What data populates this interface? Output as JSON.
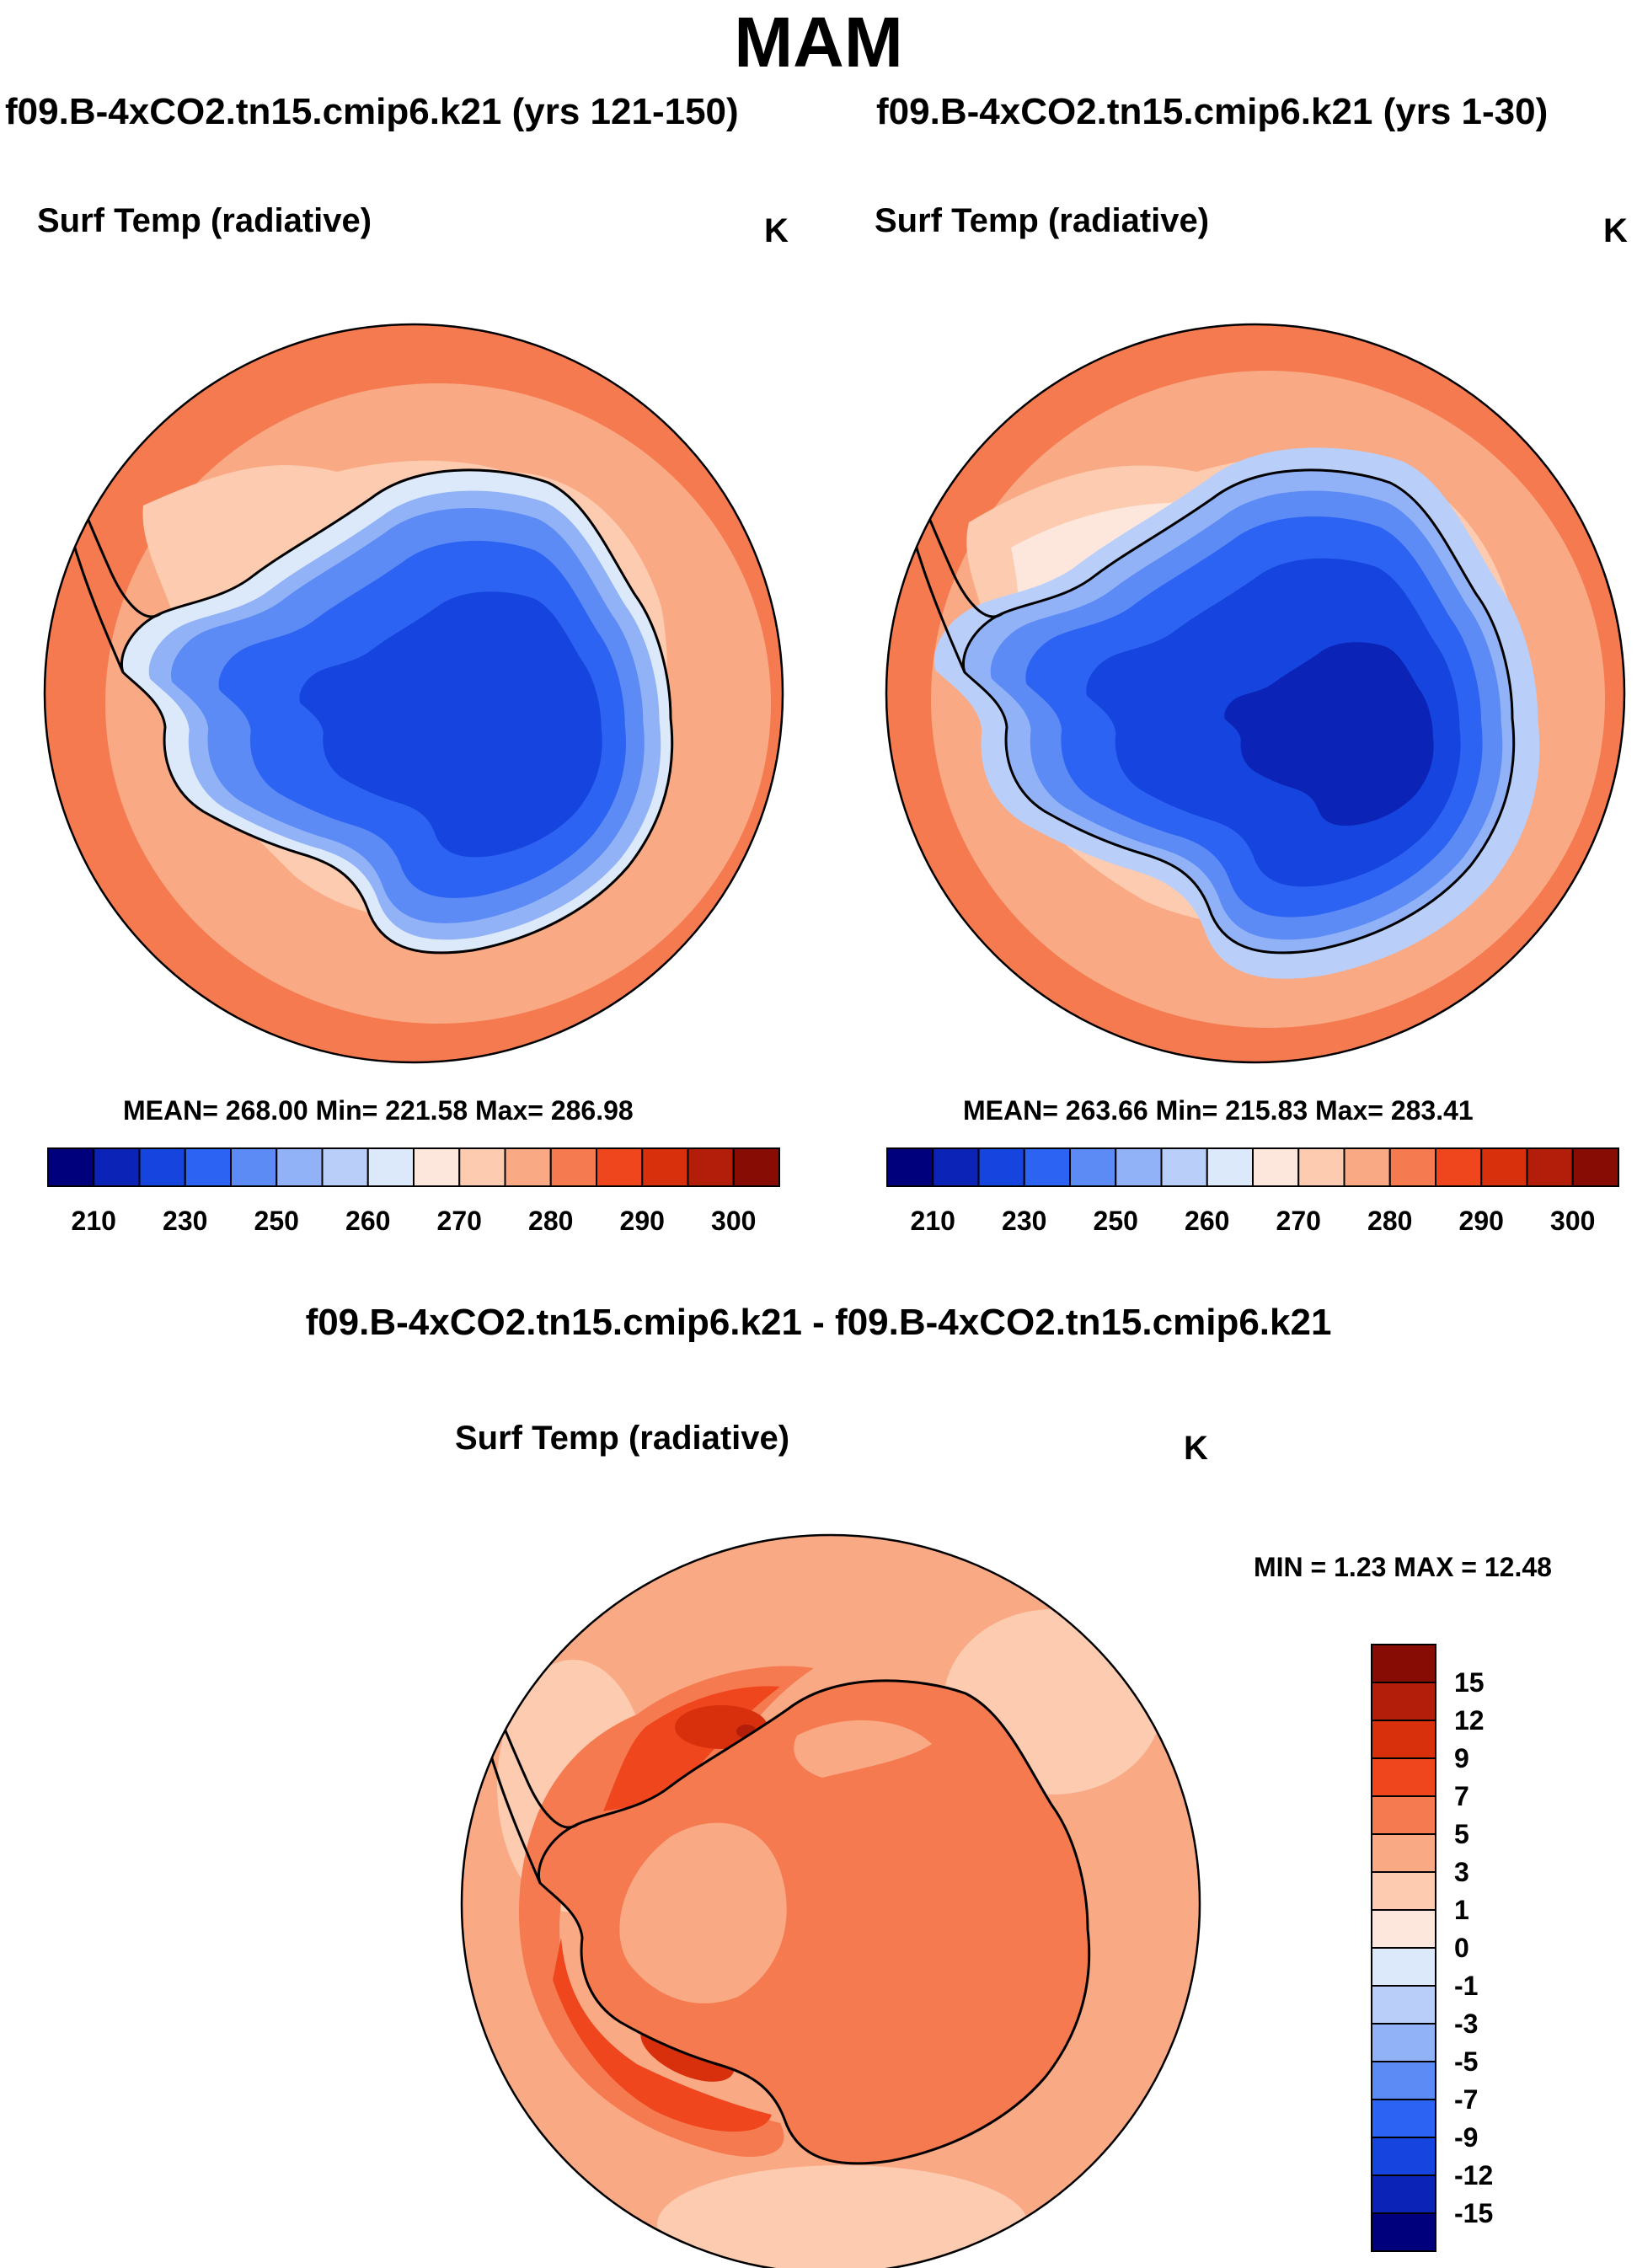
{
  "figure": {
    "season": "MAM",
    "diff_title": "f09.B-4xCO2.tn15.cmip6.k21 - f09.B-4xCO2.tn15.cmip6.k21"
  },
  "panels": {
    "left": {
      "case_title": "f09.B-4xCO2.tn15.cmip6.k21 (yrs 121-150)",
      "variable": "Surf Temp (radiative)",
      "units": "K",
      "stats": "MEAN= 268.00  Min= 221.58  Max= 286.98"
    },
    "right": {
      "case_title": "f09.B-4xCO2.tn15.cmip6.k21 (yrs 1-30)",
      "variable": "Surf Temp (radiative)",
      "units": "K",
      "stats": "MEAN= 263.66  Min= 215.83  Max= 283.41"
    },
    "diff": {
      "variable": "Surf Temp (radiative)",
      "units": "K",
      "stats": "MIN =   1.23 MAX =  12.48"
    }
  },
  "chart_data": [
    {
      "type": "heatmap",
      "title": "f09.B-4xCO2.tn15.cmip6.k21 (yrs 121-150)",
      "variable": "Surf Temp (radiative)",
      "units": "K",
      "projection": "south-polar stereographic",
      "mean": 268.0,
      "min": 221.58,
      "max": 286.98,
      "colorbar_ticks": [
        "210",
        "230",
        "250",
        "260",
        "270",
        "280",
        "290",
        "300"
      ],
      "colors": [
        "#00007d",
        "#0b23b6",
        "#1644de",
        "#2d63f2",
        "#5d8bf5",
        "#91b2f7",
        "#b9cff9",
        "#dce9fb",
        "#fde7dc",
        "#fccbb0",
        "#f9a984",
        "#f57a50",
        "#f0461e",
        "#d8300c",
        "#b21e0a",
        "#860c04"
      ]
    },
    {
      "type": "heatmap",
      "title": "f09.B-4xCO2.tn15.cmip6.k21 (yrs 1-30)",
      "variable": "Surf Temp (radiative)",
      "units": "K",
      "projection": "south-polar stereographic",
      "mean": 263.66,
      "min": 215.83,
      "max": 283.41,
      "colorbar_ticks": [
        "210",
        "230",
        "250",
        "260",
        "270",
        "280",
        "290",
        "300"
      ],
      "colors": [
        "#00007d",
        "#0b23b6",
        "#1644de",
        "#2d63f2",
        "#5d8bf5",
        "#91b2f7",
        "#b9cff9",
        "#dce9fb",
        "#fde7dc",
        "#fccbb0",
        "#f9a984",
        "#f57a50",
        "#f0461e",
        "#d8300c",
        "#b21e0a",
        "#860c04"
      ]
    },
    {
      "type": "heatmap",
      "title": "f09.B-4xCO2.tn15.cmip6.k21 - f09.B-4xCO2.tn15.cmip6.k21",
      "variable": "Surf Temp (radiative)",
      "units": "K",
      "projection": "south-polar stereographic",
      "min": 1.23,
      "max": 12.48,
      "colorbar_ticks": [
        "15",
        "12",
        "9",
        "7",
        "5",
        "3",
        "1",
        "0",
        "-1",
        "-3",
        "-5",
        "-7",
        "-9",
        "-12",
        "-15"
      ],
      "colors": [
        "#860c04",
        "#b21e0a",
        "#d8300c",
        "#f0461e",
        "#f57a50",
        "#f9a984",
        "#fccbb0",
        "#fde7dc",
        "#dce9fb",
        "#b9cff9",
        "#91b2f7",
        "#5d8bf5",
        "#2d63f2",
        "#1644de",
        "#0b23b6",
        "#00007d"
      ]
    }
  ]
}
